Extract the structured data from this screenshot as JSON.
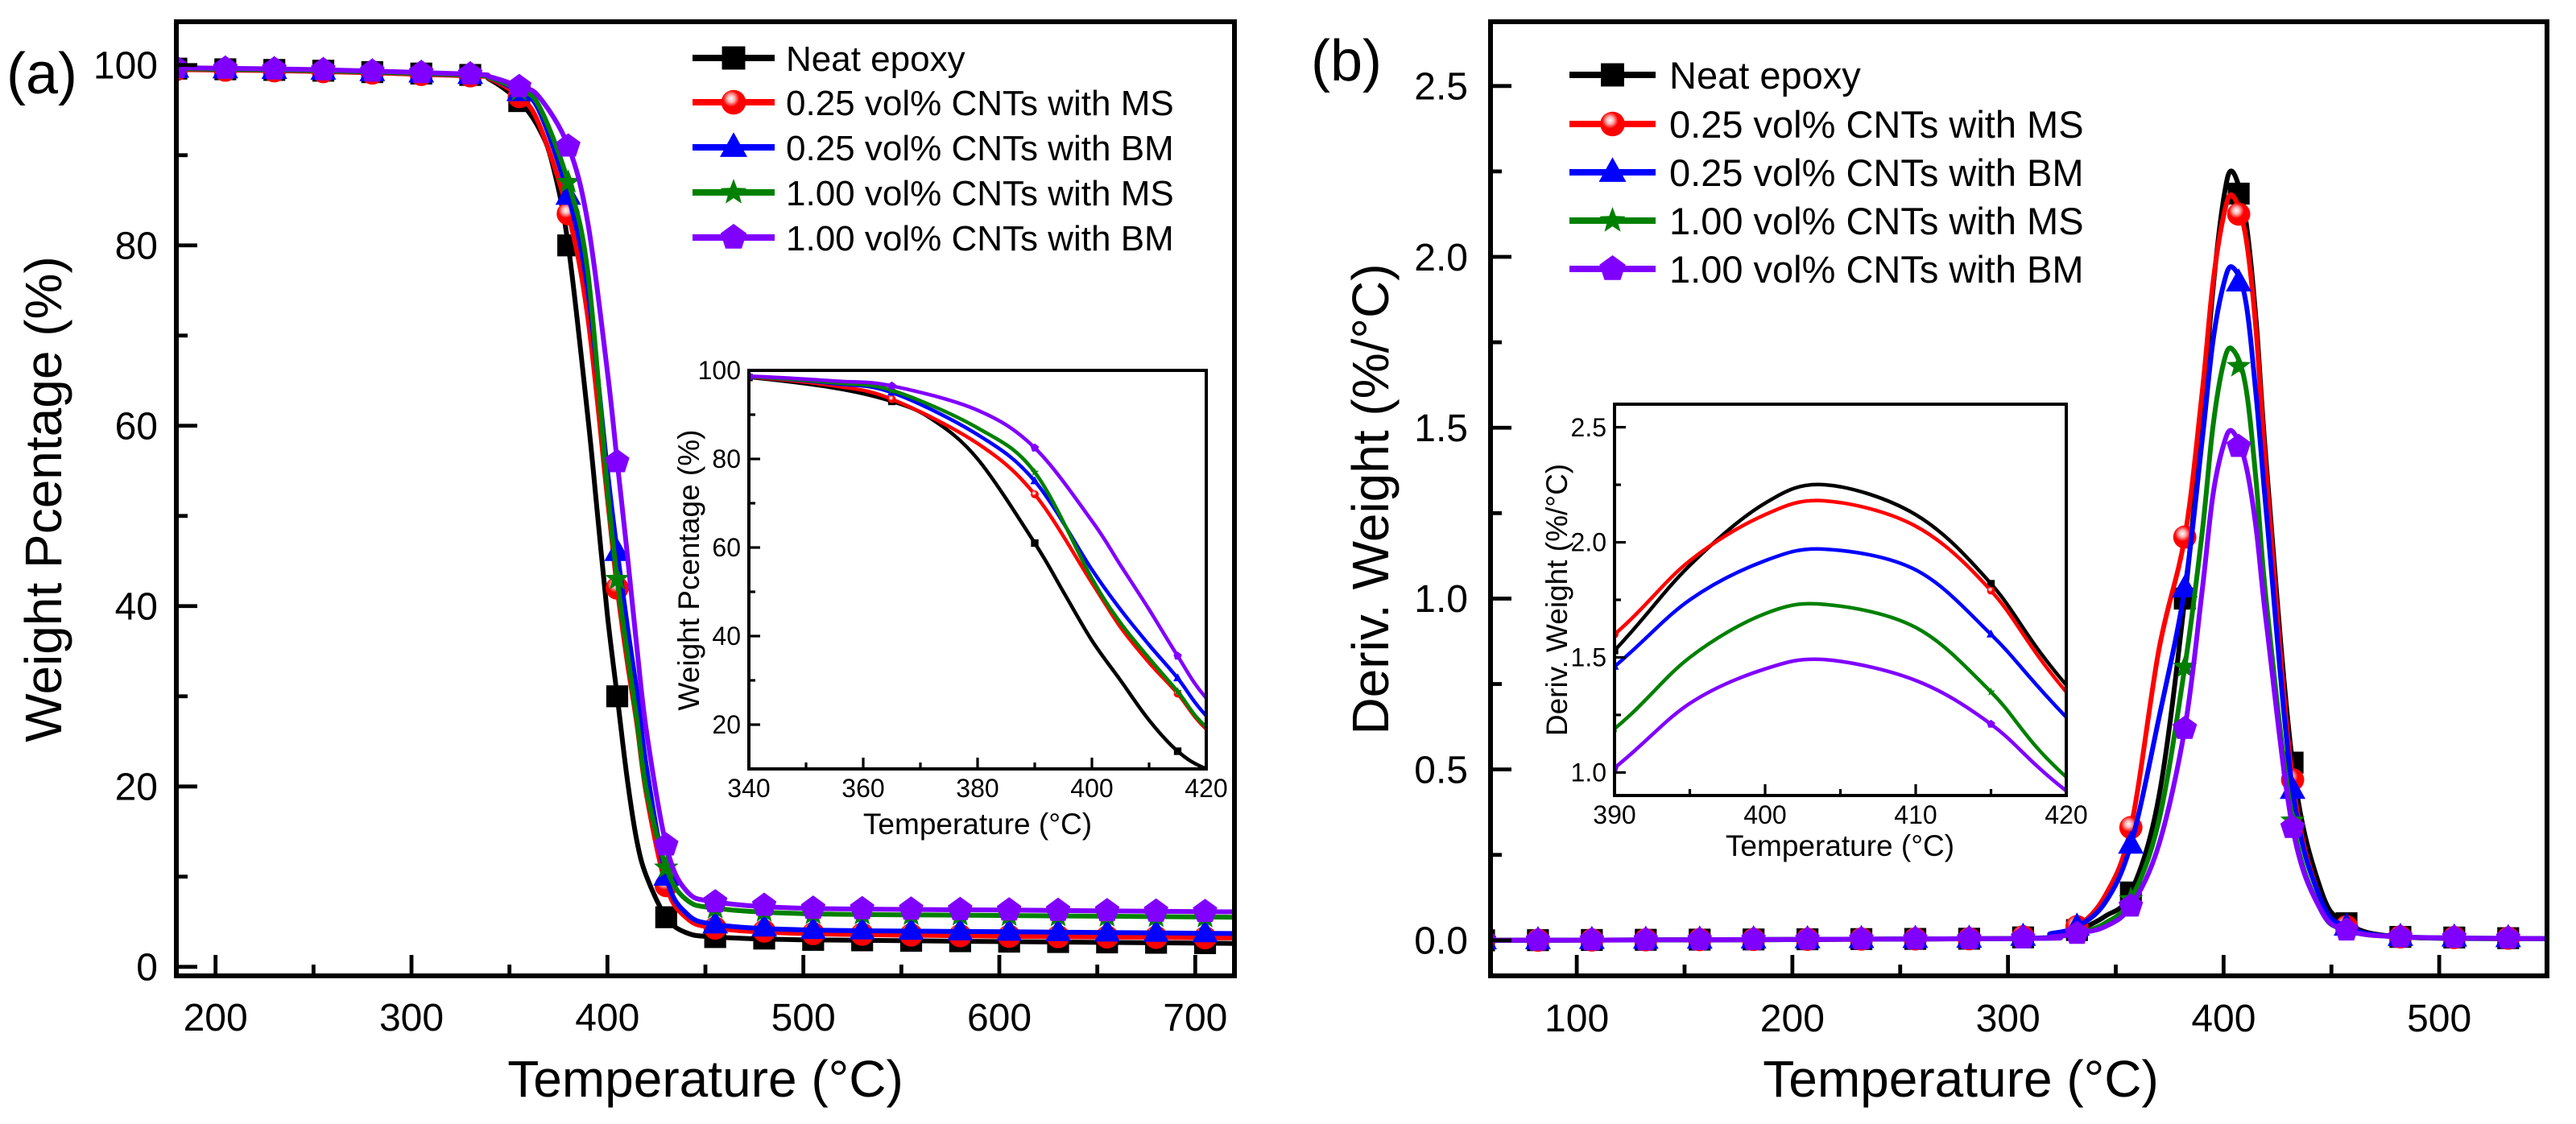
{
  "colors": {
    "neat": "#000000",
    "ms025": "#ff0000",
    "bm025": "#0000ff",
    "ms100": "#008000",
    "bm100": "#8000ff"
  },
  "chart_data": [
    {
      "type": "line",
      "panel_label": "(a)",
      "xlabel": "Temperature (°C)",
      "ylabel": "Weight Pcentage (%)",
      "xlim": [
        180,
        720
      ],
      "ylim": [
        -1,
        104.8
      ],
      "xticks": [
        "200",
        "300",
        "400",
        "500",
        "600",
        "700"
      ],
      "yticks": [
        "0",
        "20",
        "40",
        "60",
        "80",
        "100"
      ],
      "grid": false,
      "legend_position": "top-right",
      "series": [
        {
          "name": "Neat epoxy",
          "marker": "square",
          "color_key": "neat",
          "points": [
            [
              180,
              99.6
            ],
            [
              250,
              99.4
            ],
            [
              330,
              98.9
            ],
            [
              340,
              98.4
            ],
            [
              355,
              96
            ],
            [
              365,
              93
            ],
            [
              372,
              89
            ],
            [
              380,
              80
            ],
            [
              390,
              61
            ],
            [
              395,
              50
            ],
            [
              400,
              39
            ],
            [
              405,
              30
            ],
            [
              410,
              21
            ],
            [
              415,
              14
            ],
            [
              420,
              10
            ],
            [
              430,
              5.5
            ],
            [
              440,
              3.8
            ],
            [
              455,
              3.3
            ],
            [
              500,
              3.0
            ],
            [
              600,
              2.8
            ],
            [
              720,
              2.6
            ]
          ]
        },
        {
          "name": "0.25 vol% CNTs with MS",
          "marker": "circle",
          "color_key": "ms025",
          "points": [
            [
              180,
              99.5
            ],
            [
              250,
              99.3
            ],
            [
              330,
              98.8
            ],
            [
              340,
              98.5
            ],
            [
              355,
              96.5
            ],
            [
              365,
              93.5
            ],
            [
              380,
              83.5
            ],
            [
              390,
              72
            ],
            [
              400,
              52
            ],
            [
              405,
              42
            ],
            [
              410,
              34
            ],
            [
              415,
              27
            ],
            [
              420,
              19
            ],
            [
              430,
              9
            ],
            [
              440,
              5.5
            ],
            [
              455,
              4.3
            ],
            [
              500,
              3.7
            ],
            [
              600,
              3.4
            ],
            [
              720,
              3.2
            ]
          ]
        },
        {
          "name": "0.25 vol% CNTs with BM",
          "marker": "triangle",
          "color_key": "bm025",
          "points": [
            [
              180,
              99.6
            ],
            [
              250,
              99.4
            ],
            [
              330,
              98.9
            ],
            [
              340,
              98.6
            ],
            [
              355,
              97
            ],
            [
              365,
              95
            ],
            [
              380,
              85.5
            ],
            [
              390,
              75
            ],
            [
              400,
              55
            ],
            [
              405,
              46
            ],
            [
              410,
              38
            ],
            [
              415,
              30.5
            ],
            [
              420,
              22
            ],
            [
              430,
              10
            ],
            [
              440,
              6
            ],
            [
              455,
              4.7
            ],
            [
              500,
              4.1
            ],
            [
              600,
              3.9
            ],
            [
              720,
              3.7
            ]
          ]
        },
        {
          "name": "1.00 vol% CNTs with MS",
          "marker": "star",
          "color_key": "ms100",
          "points": [
            [
              180,
              99.6
            ],
            [
              250,
              99.4
            ],
            [
              330,
              98.9
            ],
            [
              340,
              98.6
            ],
            [
              355,
              97.2
            ],
            [
              365,
              95.5
            ],
            [
              380,
              87
            ],
            [
              390,
              77
            ],
            [
              400,
              53
            ],
            [
              405,
              43
            ],
            [
              410,
              35
            ],
            [
              415,
              27.5
            ],
            [
              420,
              19.5
            ],
            [
              430,
              11
            ],
            [
              440,
              7.5
            ],
            [
              455,
              6.5
            ],
            [
              500,
              5.9
            ],
            [
              600,
              5.7
            ],
            [
              720,
              5.5
            ]
          ]
        },
        {
          "name": "1.00 vol% CNTs with BM",
          "marker": "pentagon",
          "color_key": "bm100",
          "points": [
            [
              180,
              99.7
            ],
            [
              250,
              99.5
            ],
            [
              330,
              99
            ],
            [
              340,
              98.7
            ],
            [
              355,
              97.6
            ],
            [
              365,
              96.5
            ],
            [
              380,
              91
            ],
            [
              390,
              82.5
            ],
            [
              400,
              66
            ],
            [
              405,
              56
            ],
            [
              410,
              46
            ],
            [
              415,
              35.5
            ],
            [
              420,
              26
            ],
            [
              430,
              13.5
            ],
            [
              440,
              8.5
            ],
            [
              455,
              7.2
            ],
            [
              500,
              6.5
            ],
            [
              600,
              6.3
            ],
            [
              720,
              6.1
            ]
          ]
        }
      ],
      "inset": {
        "xlabel": "Temperature (°C)",
        "ylabel": "Weight Pcentage (%)",
        "xlim": [
          340,
          420
        ],
        "ylim": [
          10,
          100
        ],
        "xticks": [
          "340",
          "360",
          "380",
          "400",
          "420"
        ],
        "yticks": [
          "20",
          "40",
          "60",
          "80",
          "100"
        ]
      }
    },
    {
      "type": "line",
      "panel_label": "(b)",
      "xlabel": "Temperature (°C)",
      "ylabel": "Deriv. Weight (%/°C)",
      "xlim": [
        60,
        550
      ],
      "ylim": [
        -0.104,
        2.688
      ],
      "xticks": [
        "100",
        "200",
        "300",
        "400",
        "500"
      ],
      "yticks": [
        "0.0",
        "0.5",
        "1.0",
        "1.5",
        "2.0",
        "2.5"
      ],
      "grid": false,
      "legend_position": "top-left",
      "series": [
        {
          "name": "Neat epoxy",
          "marker": "square",
          "color_key": "neat",
          "points": [
            [
              60,
              0
            ],
            [
              300,
              0.005
            ],
            [
              320,
              0.015
            ],
            [
              332,
              0.03
            ],
            [
              345,
              0.07
            ],
            [
              357,
              0.14
            ],
            [
              370,
              0.42
            ],
            [
              382,
              1.0
            ],
            [
              390,
              1.53
            ],
            [
              395,
              1.9
            ],
            [
              400,
              2.17
            ],
            [
              404,
              2.25
            ],
            [
              410,
              2.12
            ],
            [
              415,
              1.82
            ],
            [
              420,
              1.38
            ],
            [
              432,
              0.52
            ],
            [
              445,
              0.15
            ],
            [
              457,
              0.05
            ],
            [
              482,
              0.01
            ],
            [
              550,
              0.005
            ]
          ]
        },
        {
          "name": "0.25 vol% CNTs with MS",
          "marker": "circle",
          "color_key": "ms025",
          "points": [
            [
              60,
              0
            ],
            [
              300,
              0.005
            ],
            [
              320,
              0.02
            ],
            [
              332,
              0.04
            ],
            [
              345,
              0.13
            ],
            [
              357,
              0.33
            ],
            [
              370,
              0.85
            ],
            [
              382,
              1.18
            ],
            [
              390,
              1.6
            ],
            [
              395,
              1.92
            ],
            [
              400,
              2.12
            ],
            [
              404,
              2.18
            ],
            [
              410,
              2.07
            ],
            [
              415,
              1.79
            ],
            [
              420,
              1.35
            ],
            [
              432,
              0.47
            ],
            [
              445,
              0.12
            ],
            [
              457,
              0.04
            ],
            [
              482,
              0.01
            ],
            [
              550,
              0.005
            ]
          ]
        },
        {
          "name": "0.25 vol% CNTs with BM",
          "marker": "triangle",
          "color_key": "bm025",
          "points": [
            [
              60,
              0
            ],
            [
              300,
              0.005
            ],
            [
              320,
              0.02
            ],
            [
              332,
              0.04
            ],
            [
              345,
              0.11
            ],
            [
              357,
              0.28
            ],
            [
              370,
              0.65
            ],
            [
              382,
              1.03
            ],
            [
              390,
              1.46
            ],
            [
              395,
              1.75
            ],
            [
              400,
              1.92
            ],
            [
              404,
              1.97
            ],
            [
              410,
              1.88
            ],
            [
              415,
              1.6
            ],
            [
              420,
              1.24
            ],
            [
              432,
              0.44
            ],
            [
              445,
              0.12
            ],
            [
              457,
              0.04
            ],
            [
              482,
              0.01
            ],
            [
              550,
              0.005
            ]
          ]
        },
        {
          "name": "1.00 vol% CNTs with MS",
          "marker": "star",
          "color_key": "ms100",
          "points": [
            [
              60,
              0
            ],
            [
              300,
              0.005
            ],
            [
              320,
              0.01
            ],
            [
              332,
              0.02
            ],
            [
              345,
              0.05
            ],
            [
              357,
              0.12
            ],
            [
              370,
              0.35
            ],
            [
              382,
              0.8
            ],
            [
              390,
              1.19
            ],
            [
              395,
              1.5
            ],
            [
              400,
              1.69
            ],
            [
              404,
              1.73
            ],
            [
              410,
              1.63
            ],
            [
              415,
              1.35
            ],
            [
              420,
              0.98
            ],
            [
              432,
              0.35
            ],
            [
              445,
              0.09
            ],
            [
              457,
              0.03
            ],
            [
              482,
              0.01
            ],
            [
              550,
              0.005
            ]
          ]
        },
        {
          "name": "1.00 vol% CNTs with BM",
          "marker": "pentagon",
          "color_key": "bm100",
          "points": [
            [
              60,
              0
            ],
            [
              300,
              0.005
            ],
            [
              320,
              0.01
            ],
            [
              332,
              0.02
            ],
            [
              345,
              0.04
            ],
            [
              357,
              0.1
            ],
            [
              370,
              0.28
            ],
            [
              382,
              0.62
            ],
            [
              390,
              1.02
            ],
            [
              395,
              1.3
            ],
            [
              400,
              1.45
            ],
            [
              404,
              1.49
            ],
            [
              410,
              1.4
            ],
            [
              415,
              1.21
            ],
            [
              420,
              0.92
            ],
            [
              432,
              0.33
            ],
            [
              445,
              0.09
            ],
            [
              457,
              0.03
            ],
            [
              482,
              0.01
            ],
            [
              550,
              0.005
            ]
          ]
        }
      ],
      "inset": {
        "xlabel": "Temperature (°C)",
        "ylabel": "Deriv. Weight (%/°C)",
        "xlim": [
          390,
          420
        ],
        "ylim": [
          0.9,
          2.6
        ],
        "xticks": [
          "390",
          "400",
          "410",
          "420"
        ],
        "yticks": [
          "1.0",
          "1.5",
          "2.0",
          "2.5"
        ]
      }
    }
  ]
}
